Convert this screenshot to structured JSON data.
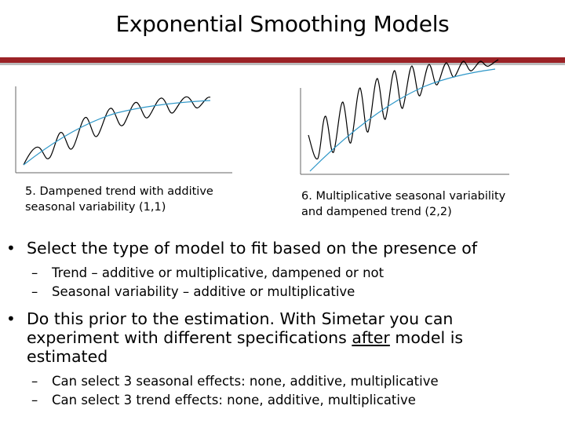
{
  "slide": {
    "title": "Exponential Smoothing Models",
    "accent_color": "#9b2226"
  },
  "figures": [
    {
      "caption_line1": "5. Dampened trend with additive",
      "caption_line2": "seasonal variability (1,1)"
    },
    {
      "caption_line1": "6. Multiplicative seasonal variability",
      "caption_line2": "and dampened trend (2,2)"
    }
  ],
  "bullets": {
    "b1": {
      "marker": "•",
      "text": "Select the type of model to fit based on the presence of",
      "sub": [
        {
          "marker": "–",
          "text": "Trend – additive or multiplicative, dampened or not"
        },
        {
          "marker": "–",
          "text": "Seasonal variability – additive or multiplicative"
        }
      ]
    },
    "b2": {
      "marker": "•",
      "line1": "Do this prior to the estimation.  With Simetar you can",
      "line2_pre": "experiment with different specifications ",
      "line2_underlined": "after",
      "line2_post": " model is",
      "line3": "estimated",
      "sub": [
        {
          "marker": "–",
          "text": "Can select 3 seasonal effects: none, additive, multiplicative"
        },
        {
          "marker": "–",
          "text": "Can select 3 trend effects: none, additive, multiplicative"
        }
      ]
    }
  }
}
